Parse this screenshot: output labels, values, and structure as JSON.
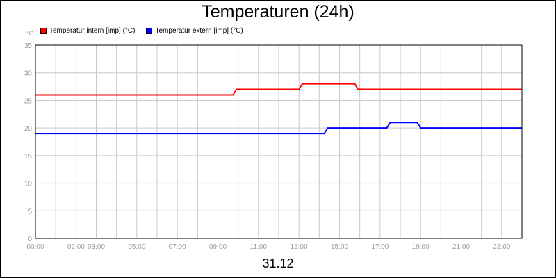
{
  "chart_data": {
    "type": "line",
    "title": "Temperaturen (24h)",
    "unit_label": "°C",
    "x_label": "31.12",
    "xlim": [
      "00:00",
      "24:00"
    ],
    "ylim": [
      0,
      35
    ],
    "y_ticks": [
      0,
      5,
      10,
      15,
      20,
      25,
      30,
      35
    ],
    "x_ticks": [
      "00:00",
      "02:00",
      "03:00",
      "05:00",
      "07:00",
      "09:00",
      "11:00",
      "13:00",
      "15:00",
      "17:00",
      "19:00",
      "21:00",
      "23:00"
    ],
    "grid": true,
    "legend_position": "top-left",
    "series": [
      {
        "name": "Temperatur intern [imp] (°C)",
        "color": "#ff0000",
        "points": [
          [
            "00:00",
            26
          ],
          [
            "09:45",
            26
          ],
          [
            "09:55",
            27
          ],
          [
            "13:00",
            27
          ],
          [
            "13:10",
            28
          ],
          [
            "15:45",
            28
          ],
          [
            "15:55",
            27
          ],
          [
            "24:00",
            27
          ]
        ]
      },
      {
        "name": "Temperatur extern [imp] (°C)",
        "color": "#0000ff",
        "points": [
          [
            "00:00",
            19
          ],
          [
            "14:15",
            19
          ],
          [
            "14:25",
            20
          ],
          [
            "17:20",
            20
          ],
          [
            "17:30",
            21
          ],
          [
            "18:50",
            21
          ],
          [
            "19:00",
            20
          ],
          [
            "24:00",
            20
          ]
        ]
      }
    ]
  }
}
